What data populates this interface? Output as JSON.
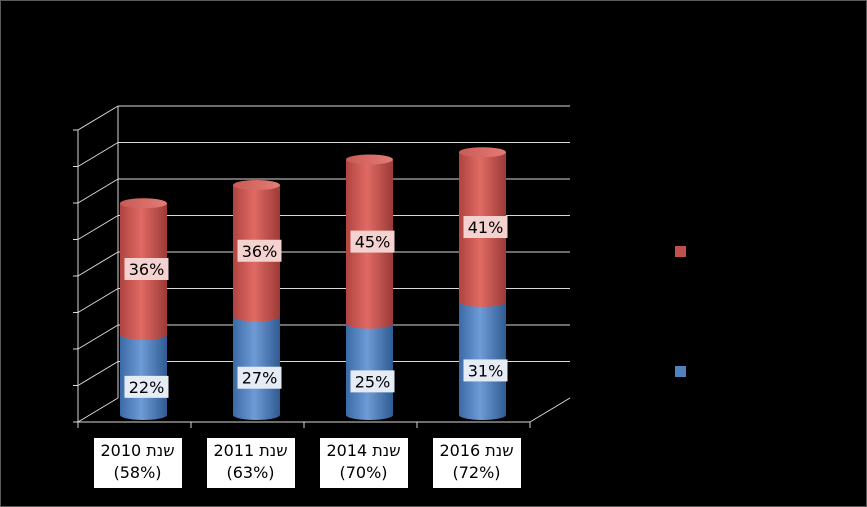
{
  "chart_data": {
    "type": "bar",
    "stacked": true,
    "style": "3d-cylinder",
    "categories": [
      {
        "line1": "שנת 2010",
        "line2": "(58%)"
      },
      {
        "line1": "שנת 2011",
        "line2": "(63%)"
      },
      {
        "line1": "שנת 2014",
        "line2": "(70%)"
      },
      {
        "line1": "שנת 2016",
        "line2": "(72%)"
      }
    ],
    "series": [
      {
        "values": [
          22,
          27,
          25,
          31
        ],
        "labels": [
          "22%",
          "27%",
          "25%",
          "31%"
        ],
        "color": "#4f81bd"
      },
      {
        "values": [
          36,
          36,
          45,
          41
        ],
        "labels": [
          "36%",
          "36%",
          "45%",
          "41%"
        ],
        "color": "#c0504d"
      }
    ],
    "ylim": [
      0,
      80
    ],
    "grid": true,
    "legend": "right",
    "colors": {
      "background": "#000000",
      "gridline": "#d9d9d9",
      "label_box": "#ffffff"
    }
  }
}
